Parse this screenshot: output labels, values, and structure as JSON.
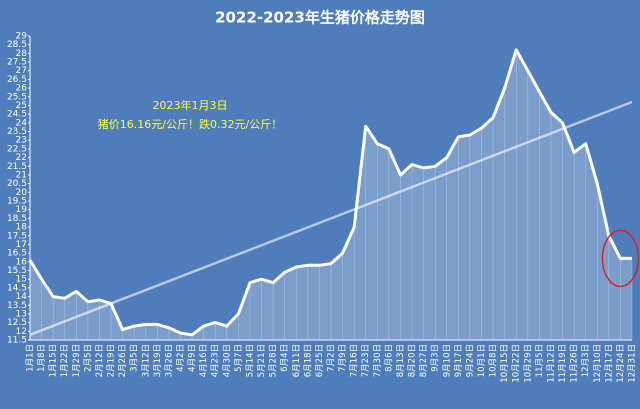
{
  "chart_data": {
    "type": "line",
    "title": "2022-2023年生猪价格走势图",
    "categories": [
      "1月1日",
      "1月8日",
      "1月15日",
      "1月22日",
      "1月29日",
      "2月5日",
      "2月12日",
      "2月19日",
      "2月26日",
      "3月5日",
      "3月12日",
      "3月19日",
      "3月26日",
      "4月2日",
      "4月9日",
      "4月16日",
      "4月23日",
      "4月30日",
      "5月7日",
      "5月14日",
      "5月21日",
      "5月28日",
      "6月4日",
      "6月11日",
      "6月18日",
      "6月25日",
      "7月2日",
      "7月9日",
      "7月16日",
      "7月23日",
      "7月30日",
      "8月6日",
      "8月13日",
      "8月20日",
      "8月27日",
      "9月3日",
      "9月10日",
      "9月17日",
      "9月24日",
      "10月1日",
      "10月8日",
      "10月15日",
      "10月22日",
      "10月29日",
      "11月5日",
      "11月12日",
      "11月19日",
      "11月26日",
      "12月3日",
      "12月10日",
      "12月17日",
      "12月24日",
      "12月31日"
    ],
    "values": [
      16.1,
      15.0,
      14.0,
      13.9,
      14.3,
      13.7,
      13.8,
      13.6,
      12.1,
      12.3,
      12.4,
      12.4,
      12.2,
      11.9,
      11.8,
      12.3,
      12.5,
      12.3,
      13.0,
      14.8,
      15.0,
      14.8,
      15.4,
      15.7,
      15.8,
      15.8,
      15.9,
      16.5,
      18.0,
      23.8,
      22.8,
      22.5,
      21.0,
      21.6,
      21.4,
      21.5,
      22.0,
      23.2,
      23.3,
      23.7,
      24.3,
      26.0,
      28.2,
      27.0,
      25.8,
      24.6,
      24.0,
      22.3,
      22.8,
      20.5,
      17.5,
      16.2,
      16.2
    ],
    "color": "#ffffff",
    "trend_line": [
      11.8,
      25.2
    ],
    "ylim": [
      11.5,
      29
    ],
    "yticks": [
      11.5,
      12,
      12.5,
      13,
      13.5,
      14,
      14.5,
      15,
      15.5,
      16,
      16.5,
      17,
      17.5,
      18,
      18.5,
      19,
      19.5,
      20,
      20.5,
      21,
      21.5,
      22,
      22.5,
      23,
      23.5,
      24,
      24.5,
      25,
      25.5,
      26,
      26.5,
      27,
      27.5,
      28,
      28.5,
      29
    ],
    "annotations": [
      "2023年1月3日",
      "猪价16.16元/公斤！跌0.32元/公斤！"
    ]
  }
}
